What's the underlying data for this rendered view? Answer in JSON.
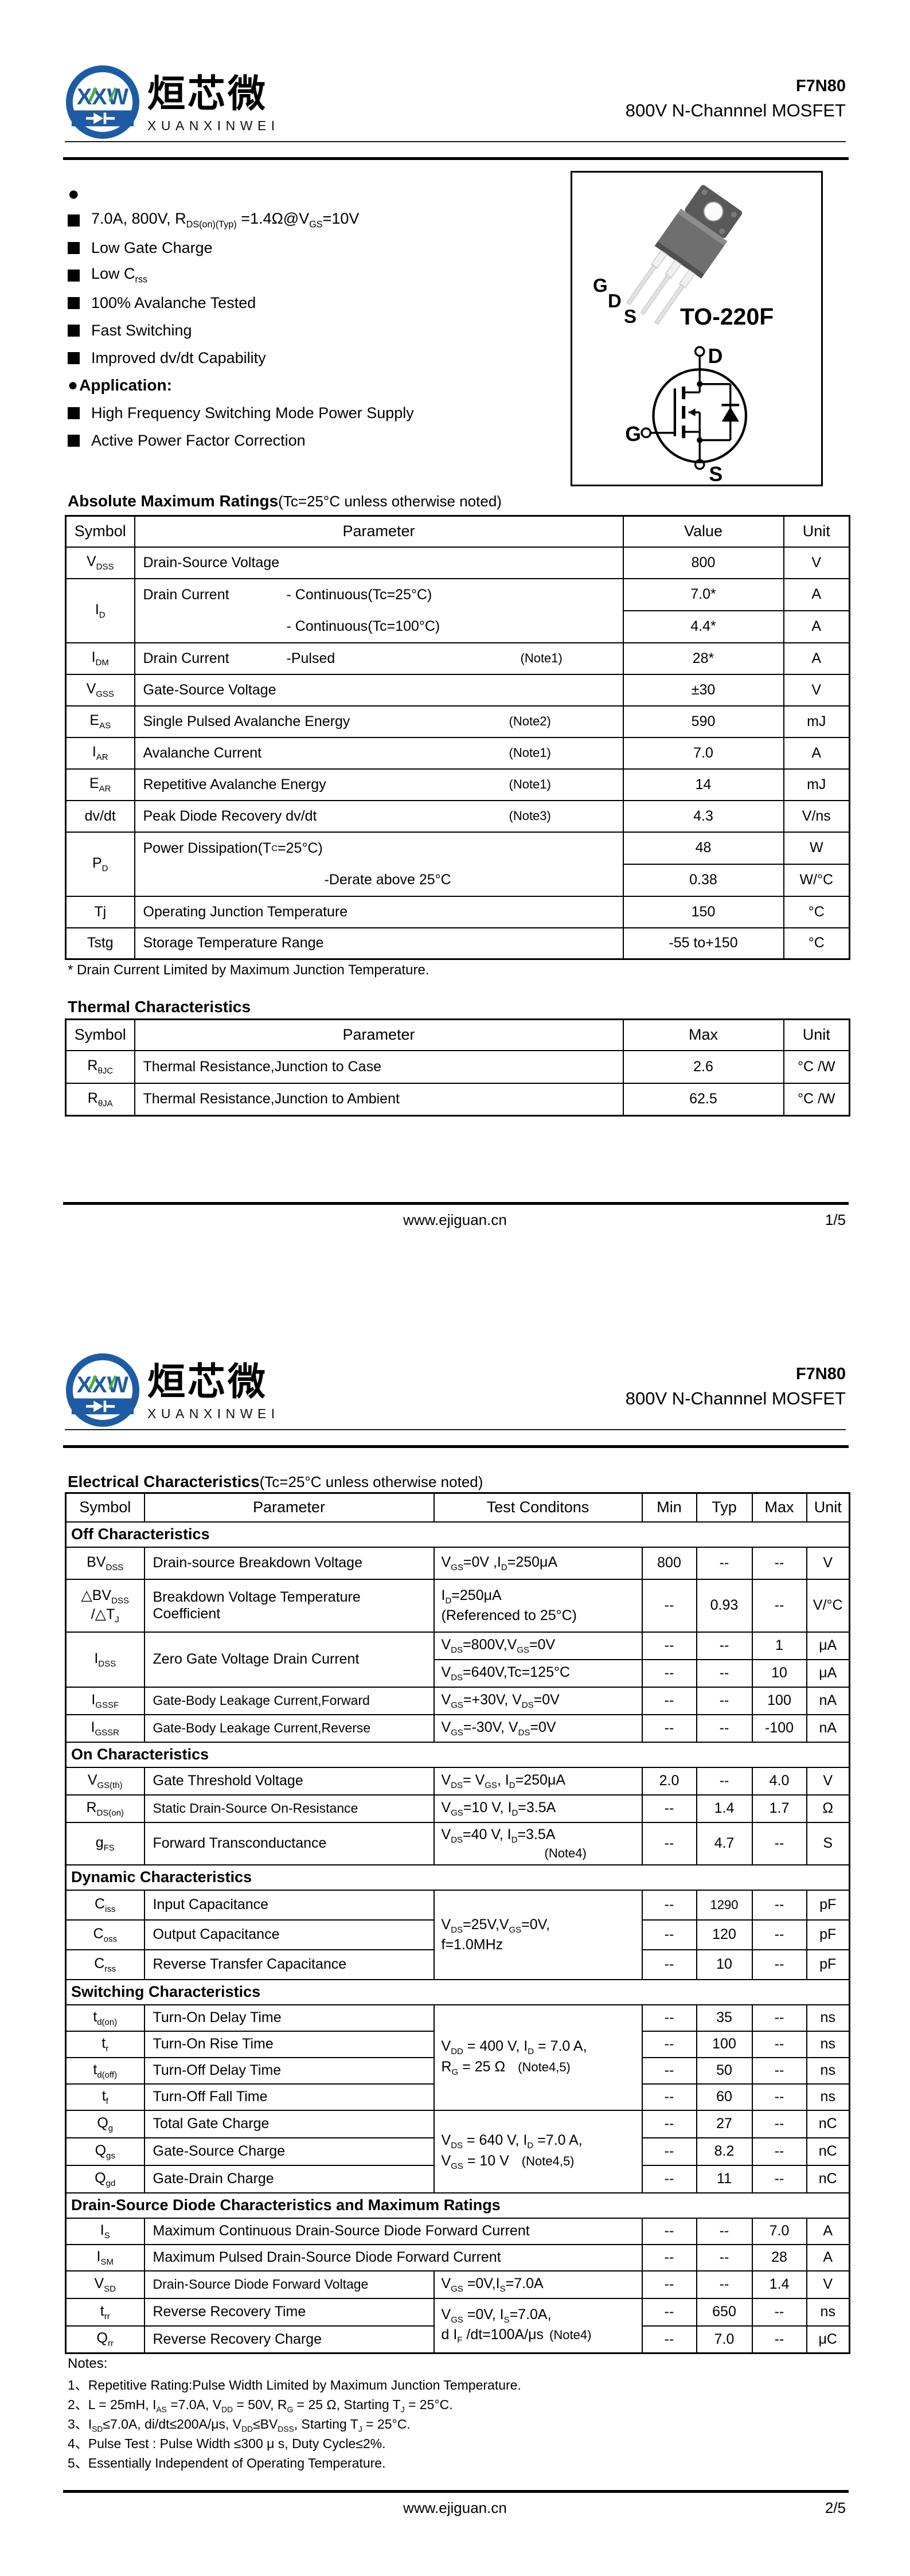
{
  "colors": {
    "logo_blue": "#1d5ca5",
    "logo_green": "#4faf3c",
    "ink": "#000000"
  },
  "brand": {
    "monogram": "XXW",
    "cn": "烜芯微",
    "en": "XUANXINWEI"
  },
  "doc": {
    "part": "F7N80",
    "subtitle": "800V N-Channnel MOSFET",
    "website": "www.ejiguan.cn"
  },
  "page1": {
    "page_num": "1/5",
    "features_bullet": "●",
    "features": [
      "7.0A, 800V, R~DS(on)(Typ)~ =1.4Ω@V~GS~=10V",
      "Low Gate Charge",
      "Low C~rss~",
      "100% Avalanche Tested",
      "Fast Switching",
      "Improved dv/dt Capability"
    ],
    "application_bullet": "●",
    "application_heading": "Application:",
    "applications": [
      "High Frequency Switching Mode Power Supply",
      "Active Power Factor Correction"
    ],
    "package": {
      "name": "TO-220F",
      "pin_g": "G",
      "pin_d": "D",
      "pin_s": "S",
      "sym_d": "D",
      "sym_g": "G",
      "sym_s": "S"
    },
    "abs": {
      "title": "Absolute Maximum Ratings",
      "subtitle": "(Tc=25°C unless otherwise noted)",
      "headers": [
        "Symbol",
        "Parameter",
        "Value",
        "Unit"
      ],
      "rows": {
        "vdss": {
          "sym": "V~DSS~",
          "param": "Drain-Source Voltage",
          "value": "800",
          "unit": "V"
        },
        "id": {
          "sym": "I~D~",
          "label": "Drain Current",
          "cond1": "- Continuous(Tc=25°C)",
          "cond2": "- Continuous(Tc=100°C)",
          "value1": "7.0*",
          "unit1": "A",
          "value2": "4.4*",
          "unit2": "A"
        },
        "idm": {
          "sym": "I~DM~",
          "label": "Drain Current",
          "cond": "-Pulsed",
          "note": "(Note1)",
          "value": "28*",
          "unit": "A"
        },
        "vgss": {
          "sym": "V~GSS~",
          "param": "Gate-Source Voltage",
          "value": "±30",
          "unit": "V"
        },
        "eas": {
          "sym": "E~AS~",
          "param": "Single Pulsed Avalanche Energy",
          "note": "(Note2)",
          "value": "590",
          "unit": "mJ"
        },
        "iar": {
          "sym": "I~AR~",
          "param": "Avalanche Current",
          "note": "(Note1)",
          "value": "7.0",
          "unit": "A"
        },
        "ear": {
          "sym": "E~AR~",
          "param": "Repetitive Avalanche Energy",
          "note": "(Note1)",
          "value": "14",
          "unit": "mJ"
        },
        "dvdt": {
          "sym": "dv/dt",
          "param": "Peak Diode Recovery dv/dt",
          "note": "(Note3)",
          "value": "4.3",
          "unit": "V/ns"
        },
        "pd": {
          "sym": "P~D~",
          "line1": "Power Dissipation(T~C~ =25°C)",
          "line2": "-Derate above 25°C",
          "value1": "48",
          "unit1": "W",
          "value2": "0.38",
          "unit2": "W/°C"
        },
        "tj": {
          "sym": "Tj",
          "param": "Operating Junction Temperature",
          "value": "150",
          "unit": "°C"
        },
        "tstg": {
          "sym": "Tstg",
          "param": "Storage Temperature Range",
          "value": "-55 to+150",
          "unit": "°C"
        }
      },
      "footnote": "* Drain Current Limited by Maximum Junction Temperature."
    },
    "thermal": {
      "title": "Thermal Characteristics",
      "headers": [
        "Symbol",
        "Parameter",
        "Max",
        "Unit"
      ],
      "rows": [
        {
          "sym": "R~θJC~",
          "param": "Thermal Resistance,Junction to Case",
          "value": "2.6",
          "unit": "°C /W"
        },
        {
          "sym": "R~θJA~",
          "param": "Thermal Resistance,Junction to Ambient",
          "value": "62.5",
          "unit": "°C /W"
        }
      ]
    }
  },
  "page2": {
    "page_num": "2/5",
    "elec": {
      "title": "Electrical Characteristics",
      "subtitle": "(Tc=25°C unless otherwise noted)",
      "headers": [
        "Symbol",
        "Parameter",
        "Test Conditons",
        "Min",
        "Typ",
        "Max",
        "Unit"
      ],
      "sections": [
        "Off Characteristics",
        "On Characteristics",
        "Dynamic Characteristics",
        "Switching Characteristics",
        "Drain-Source Diode Characteristics and Maximum Ratings"
      ],
      "rows": {
        "bvdss": {
          "sym": "BV~DSS~",
          "param": "Drain-source Breakdown Voltage",
          "cond": "V~GS~=0V ,I~D~=250μA",
          "min": "800",
          "typ": "--",
          "max": "--",
          "unit": "V"
        },
        "dbv": {
          "sym1": "△BV~DSS~",
          "sym2": "/△T~J~",
          "param": "Breakdown Voltage Temperature Coefficient",
          "cond1": "I~D~=250μA",
          "cond2": "(Referenced to 25°C)",
          "min": "--",
          "typ": "0.93",
          "max": "--",
          "unit": "V/°C"
        },
        "idss": {
          "sym": "I~DSS~",
          "param": "Zero Gate Voltage Drain Current",
          "cond1": "V~DS~=800V,V~GS~=0V",
          "min1": "--",
          "typ1": "--",
          "max1": "1",
          "unit1": "μA",
          "cond2": "V~DS~=640V,Tc=125°C",
          "min2": "--",
          "typ2": "--",
          "max2": "10",
          "unit2": "μA"
        },
        "igssf": {
          "sym": "I~GSSF~",
          "param": "Gate-Body Leakage Current,Forward",
          "cond": "V~GS~=+30V, V~DS~=0V",
          "min": "--",
          "typ": "--",
          "max": "100",
          "unit": "nA"
        },
        "igssr": {
          "sym": "I~GSSR~",
          "param": "Gate-Body Leakage Current,Reverse",
          "cond": "V~GS~=-30V, V~DS~=0V",
          "min": "--",
          "typ": "--",
          "max": "-100",
          "unit": "nA"
        },
        "vgsth": {
          "sym": "V~GS(th)~",
          "param": "Gate Threshold Voltage",
          "cond": "V~DS~= V~GS~, I~D~=250μA",
          "min": "2.0",
          "typ": "--",
          "max": "4.0",
          "unit": "V"
        },
        "rdson": {
          "sym": "R~DS(on)~",
          "param": "Static Drain-Source On-Resistance",
          "cond": "V~GS~=10 V, I~D~=3.5A",
          "min": "--",
          "typ": "1.4",
          "max": "1.7",
          "unit": "Ω"
        },
        "gfs": {
          "sym": "g~FS~",
          "param": "Forward Transconductance",
          "cond1": "V~DS~=40 V, I~D~=3.5A",
          "cond2": "(Note4)",
          "min": "--",
          "typ": "4.7",
          "max": "--",
          "unit": "S"
        },
        "ciss": {
          "sym": "C~iss~",
          "param": "Input Capacitance",
          "min": "--",
          "typ": "1290",
          "max": "--",
          "unit": "pF"
        },
        "coss": {
          "sym": "C~oss~",
          "param": "Output Capacitance",
          "min": "--",
          "typ": "120",
          "max": "--",
          "unit": "pF"
        },
        "crss": {
          "sym": "C~rss~",
          "param": "Reverse Transfer Capacitance",
          "min": "--",
          "typ": "10",
          "max": "--",
          "unit": "pF"
        },
        "cap_cond1": "V~DS~=25V,V~GS~=0V,",
        "cap_cond2": "f=1.0MHz",
        "tdon": {
          "sym": "t~d(on)~",
          "param": "Turn-On Delay Time",
          "min": "--",
          "typ": "35",
          "max": "--",
          "unit": "ns"
        },
        "tr": {
          "sym": "t~r~",
          "param": "Turn-On Rise Time",
          "min": "--",
          "typ": "100",
          "max": "--",
          "unit": "ns"
        },
        "tdoff": {
          "sym": "t~d(off)~",
          "param": "Turn-Off Delay Time",
          "min": "--",
          "typ": "50",
          "max": "--",
          "unit": "ns"
        },
        "tf": {
          "sym": "t~f~",
          "param": "Turn-Off Fall Time",
          "min": "--",
          "typ": "60",
          "max": "--",
          "unit": "ns"
        },
        "sw_cond1": "V~DD~ = 400 V, I~D~ = 7.0 A,",
        "sw_cond2": "R~G~ = 25 Ω",
        "sw_note": "(Note4,5)",
        "qg": {
          "sym": "Q~g~",
          "param": "Total Gate Charge",
          "min": "--",
          "typ": "27",
          "max": "--",
          "unit": "nC"
        },
        "qgs": {
          "sym": "Q~gs~",
          "param": "Gate-Source Charge",
          "min": "--",
          "typ": "8.2",
          "max": "--",
          "unit": "nC"
        },
        "qgd": {
          "sym": "Q~gd~",
          "param": "Gate-Drain Charge",
          "min": "--",
          "typ": "11",
          "max": "--",
          "unit": "nC"
        },
        "q_cond1": "V~DS~ = 640 V, I~D~ =7.0 A,",
        "q_cond2": "V~GS~ = 10 V",
        "q_note": "(Note4,5)",
        "is": {
          "sym": "I~S~",
          "param": "Maximum Continuous Drain-Source Diode Forward Current",
          "min": "--",
          "typ": "--",
          "max": "7.0",
          "unit": "A"
        },
        "ism": {
          "sym": "I~SM~",
          "param": "Maximum Pulsed Drain-Source Diode Forward Current",
          "min": "--",
          "typ": "--",
          "max": "28",
          "unit": "A"
        },
        "vsd": {
          "sym": "V~SD~",
          "param": "Drain-Source Diode Forward Voltage",
          "cond": "V~GS~ =0V,I~S~=7.0A",
          "min": "--",
          "typ": "--",
          "max": "1.4",
          "unit": "V"
        },
        "trr": {
          "sym": "t~rr~",
          "param": "Reverse Recovery Time",
          "min": "--",
          "typ": "650",
          "max": "--",
          "unit": "ns"
        },
        "qrr": {
          "sym": "Q~rr~",
          "param": "Reverse Recovery Charge",
          "min": "--",
          "typ": "7.0",
          "max": "--",
          "unit": "μC"
        },
        "rr_cond1": "V~GS~ =0V, I~S~=7.0A,",
        "rr_cond2": "d I~F~ /dt=100A/μs",
        "rr_note": "(Note4)"
      }
    },
    "notes": {
      "heading": "Notes:",
      "items": [
        "1、Repetitive Rating:Pulse Width Limited by Maximum Junction Temperature.",
        "2、L = 25mH, I~AS~ =7.0A, V~DD~ = 50V, R~G~ = 25 Ω, Starting T~J~ = 25°C.",
        "3、I~SD~≤7.0A, di/dt≤200A/μs, V~DD~≤BV~DSS~, Starting T~J~ = 25°C.",
        "4、Pulse Test : Pulse Width ≤300 μ s, Duty Cycle≤2%.",
        "5、Essentially Independent of Operating Temperature."
      ]
    }
  }
}
